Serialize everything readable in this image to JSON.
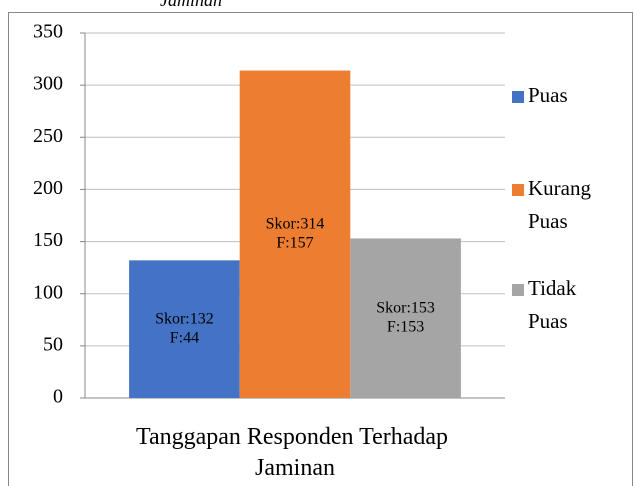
{
  "chart_data": {
    "type": "bar",
    "caption": "Jaminan",
    "categories": [
      "Tanggapan Responden Terhadap Jaminan"
    ],
    "series": [
      {
        "name": "Puas",
        "color": "#4472c4",
        "values": [
          132
        ],
        "value_labels": [
          [
            "Skor:132",
            "F:44"
          ]
        ]
      },
      {
        "name": "Kurang Puas",
        "color": "#ed7d31",
        "values": [
          314
        ],
        "value_labels": [
          [
            "Skor:314",
            "F:157"
          ]
        ]
      },
      {
        "name": "Tidak Puas",
        "color": "#a5a5a5",
        "values": [
          153
        ],
        "value_labels": [
          [
            "Skor:153",
            "F:153"
          ]
        ]
      }
    ],
    "ylim": [
      0,
      350
    ],
    "yticks": [
      0,
      50,
      100,
      150,
      200,
      250,
      300,
      350
    ],
    "grid": true,
    "legend": "right"
  }
}
